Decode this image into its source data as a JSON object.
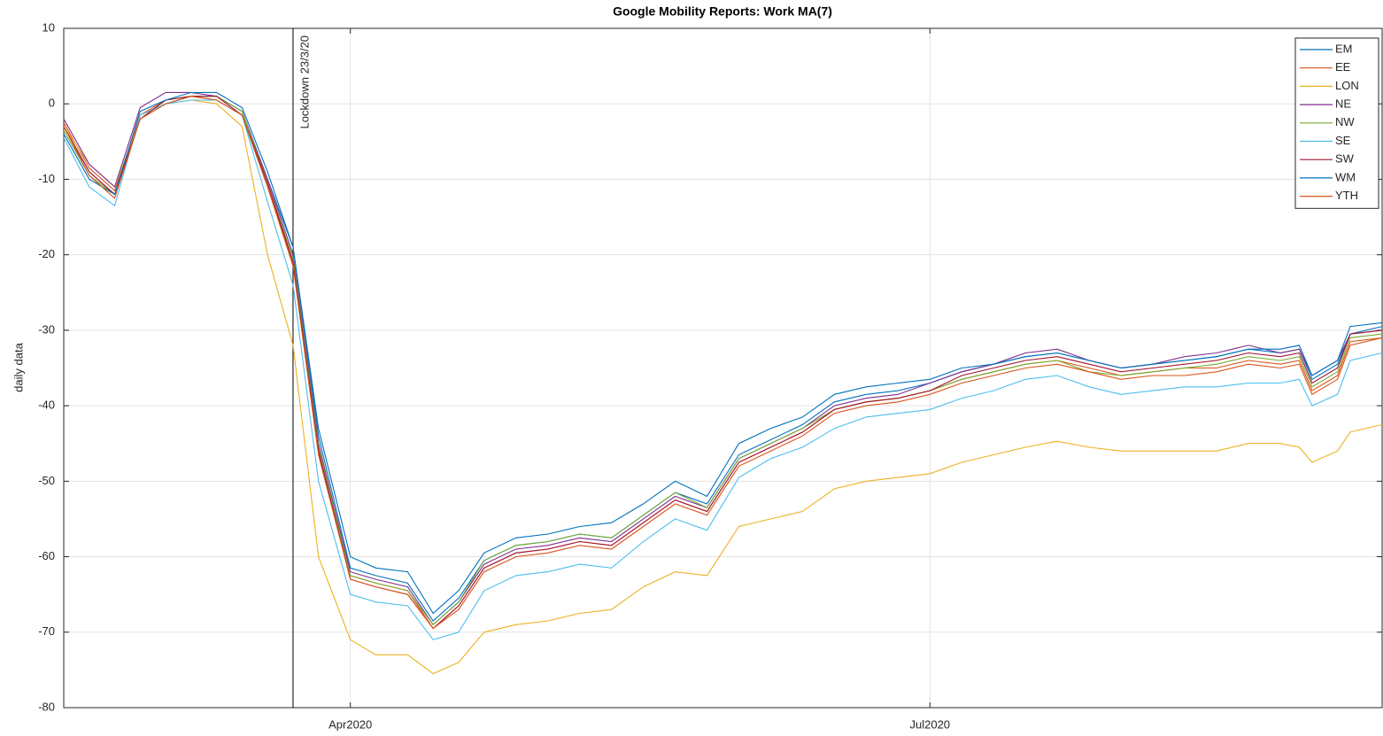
{
  "chart_data": {
    "type": "line",
    "title": "Google Mobility Reports: Work MA(7)",
    "y_label": "daily data",
    "x": [
      "2020-02-16",
      "2020-02-20",
      "2020-02-24",
      "2020-02-28",
      "2020-03-03",
      "2020-03-07",
      "2020-03-11",
      "2020-03-15",
      "2020-03-19",
      "2020-03-23",
      "2020-03-27",
      "2020-04-01",
      "2020-04-05",
      "2020-04-10",
      "2020-04-14",
      "2020-04-18",
      "2020-04-22",
      "2020-04-27",
      "2020-05-02",
      "2020-05-07",
      "2020-05-12",
      "2020-05-17",
      "2020-05-22",
      "2020-05-27",
      "2020-06-01",
      "2020-06-06",
      "2020-06-11",
      "2020-06-16",
      "2020-06-21",
      "2020-06-26",
      "2020-07-01",
      "2020-07-06",
      "2020-07-11",
      "2020-07-16",
      "2020-07-21",
      "2020-07-26",
      "2020-07-31",
      "2020-08-05",
      "2020-08-10",
      "2020-08-15",
      "2020-08-20",
      "2020-08-25",
      "2020-08-28",
      "2020-08-30",
      "2020-09-03",
      "2020-09-05",
      "2020-09-10"
    ],
    "series": [
      {
        "name": "EM",
        "color": "#0072BD",
        "values": [
          -3,
          -9,
          -12,
          -2,
          0,
          1,
          1,
          -1,
          -10,
          -19,
          -44,
          -61.5,
          -62.5,
          -63.5,
          -68.5,
          -65.5,
          -60.5,
          -58.5,
          -58,
          -57,
          -57.5,
          -54.5,
          -51.5,
          -53,
          -46.5,
          -44.5,
          -42.5,
          -39.5,
          -38.5,
          -38,
          -37,
          -35.5,
          -34.5,
          -33.5,
          -33,
          -34,
          -35,
          -34.5,
          -34,
          -33.5,
          -32.5,
          -33,
          -32.5,
          -36.5,
          -34.5,
          -30.5,
          -29.5
        ]
      },
      {
        "name": "EE",
        "color": "#D95319",
        "values": [
          -2.5,
          -8.5,
          -11.5,
          -1.5,
          0.5,
          1,
          0.5,
          -1.5,
          -11,
          -21,
          -46,
          -62.5,
          -63.5,
          -64.5,
          -69.5,
          -66.5,
          -61.5,
          -59.5,
          -59,
          -58,
          -58.5,
          -55.5,
          -52.5,
          -54,
          -47.5,
          -45.5,
          -43.5,
          -40.5,
          -39.5,
          -39,
          -38,
          -36.5,
          -35.5,
          -34.5,
          -34,
          -35,
          -36,
          -35.5,
          -35,
          -35,
          -34,
          -34.5,
          -34,
          -38,
          -36,
          -31.5,
          -31
        ]
      },
      {
        "name": "LON",
        "color": "#EDB120",
        "values": [
          -3,
          -8,
          -11,
          -2,
          0,
          0.5,
          0,
          -3,
          -20,
          -32,
          -60,
          -71,
          -73,
          -73,
          -75.5,
          -74,
          -70,
          -69,
          -68.5,
          -67.5,
          -67,
          -64,
          -62,
          -62.5,
          -56,
          -55,
          -54,
          -51,
          -50,
          -49.5,
          -49,
          -47.5,
          -46.5,
          -45.5,
          -44.7,
          -45.5,
          -46,
          -46,
          -46,
          -46,
          -45,
          -45,
          -45.5,
          -47.5,
          -46,
          -43.5,
          -42.5
        ]
      },
      {
        "name": "NE",
        "color": "#7E2F8E",
        "values": [
          -2,
          -8,
          -11,
          -0.5,
          1.5,
          1.5,
          1,
          -1,
          -10,
          -20,
          -45,
          -62,
          -63,
          -64,
          -69,
          -66,
          -61,
          -59,
          -58.5,
          -57.5,
          -58,
          -55,
          -52,
          -53.5,
          -47,
          -45,
          -43,
          -40,
          -39,
          -38.5,
          -37,
          -35.5,
          -34.5,
          -33,
          -32.5,
          -34,
          -35,
          -34.5,
          -33.5,
          -33,
          -32,
          -33,
          -32.5,
          -36,
          -34,
          -30.5,
          -30
        ]
      },
      {
        "name": "NW",
        "color": "#77AC30",
        "values": [
          -3.5,
          -9.5,
          -12,
          -2,
          0.5,
          1,
          1,
          -1,
          -10.5,
          -20.5,
          -45.5,
          -62.5,
          -63.5,
          -64.5,
          -69,
          -66,
          -60.5,
          -58.5,
          -58,
          -57,
          -57.5,
          -54.5,
          -51.5,
          -53.5,
          -47,
          -45,
          -43,
          -40.5,
          -39.5,
          -39,
          -38,
          -36.5,
          -35.5,
          -34.5,
          -34,
          -35.5,
          -36,
          -35.5,
          -35,
          -34.5,
          -33.5,
          -34,
          -33.5,
          -37.5,
          -35.5,
          -31,
          -30.5
        ]
      },
      {
        "name": "SE",
        "color": "#4DBEEE",
        "values": [
          -4.5,
          -11,
          -13.5,
          -1.5,
          0,
          0.5,
          0.5,
          -1.5,
          -13,
          -24,
          -50,
          -65,
          -66,
          -66.5,
          -71,
          -70,
          -64.5,
          -62.5,
          -62,
          -61,
          -61.5,
          -58,
          -55,
          -56.5,
          -49.5,
          -47,
          -45.5,
          -43,
          -41.5,
          -41,
          -40.5,
          -39,
          -38,
          -36.5,
          -36,
          -37.5,
          -38.5,
          -38,
          -37.5,
          -37.5,
          -37,
          -37,
          -36.5,
          -40,
          -38.5,
          -34,
          -33
        ]
      },
      {
        "name": "SW",
        "color": "#A2142F",
        "values": [
          -3,
          -9,
          -12,
          -2,
          0.5,
          1,
          1,
          -1.5,
          -10.5,
          -21,
          -46,
          -63,
          -64,
          -65,
          -69.5,
          -66.5,
          -61.5,
          -59.5,
          -59,
          -58,
          -58.5,
          -55.5,
          -52.5,
          -54,
          -47.5,
          -45.5,
          -43.5,
          -40.5,
          -39.5,
          -39,
          -38,
          -36,
          -35,
          -34,
          -33.5,
          -34.5,
          -35.5,
          -35,
          -34.5,
          -34,
          -33,
          -33.5,
          -33,
          -37,
          -35,
          -30.5,
          -30
        ]
      },
      {
        "name": "WM",
        "color": "#0072BD",
        "values": [
          -4,
          -10,
          -12,
          -1,
          0.5,
          1.5,
          1.5,
          -0.5,
          -9,
          -19,
          -43,
          -60,
          -61.5,
          -62,
          -67.5,
          -64.5,
          -59.5,
          -57.5,
          -57,
          -56,
          -55.5,
          -53,
          -50,
          -52,
          -45,
          -43,
          -41.5,
          -38.5,
          -37.5,
          -37,
          -36.5,
          -35,
          -34.5,
          -33.5,
          -33,
          -34,
          -35,
          -34.5,
          -34,
          -33.5,
          -32.5,
          -32.5,
          -32,
          -36,
          -34,
          -29.5,
          -29
        ]
      },
      {
        "name": "YTH",
        "color": "#D95319",
        "values": [
          -3,
          -9.5,
          -12.5,
          -2,
          0,
          1,
          0.5,
          -1.5,
          -11,
          -21.5,
          -46.5,
          -63,
          -64,
          -65,
          -69.5,
          -67,
          -62,
          -60,
          -59.5,
          -58.5,
          -59,
          -56,
          -53,
          -54.5,
          -48,
          -46,
          -44,
          -41,
          -40,
          -39.5,
          -38.5,
          -37,
          -36,
          -35,
          -34.5,
          -35.5,
          -36.5,
          -36,
          -36,
          -35.5,
          -34.5,
          -35,
          -34.5,
          -38.5,
          -36.5,
          -32,
          -31
        ]
      }
    ],
    "annotations": [
      {
        "x": "2020-03-23",
        "text": "Lockdown 23/3/20"
      }
    ],
    "xlim": [
      "2020-02-16",
      "2020-09-10"
    ],
    "xticks": [
      {
        "value": "2020-04-01",
        "label": "Apr2020"
      },
      {
        "value": "2020-07-01",
        "label": "Jul2020"
      }
    ],
    "ylim": [
      -80,
      10
    ],
    "yticks": [
      -80,
      -70,
      -60,
      -50,
      -40,
      -30,
      -20,
      -10,
      0,
      10
    ],
    "grid": true,
    "legend": "northeast"
  }
}
